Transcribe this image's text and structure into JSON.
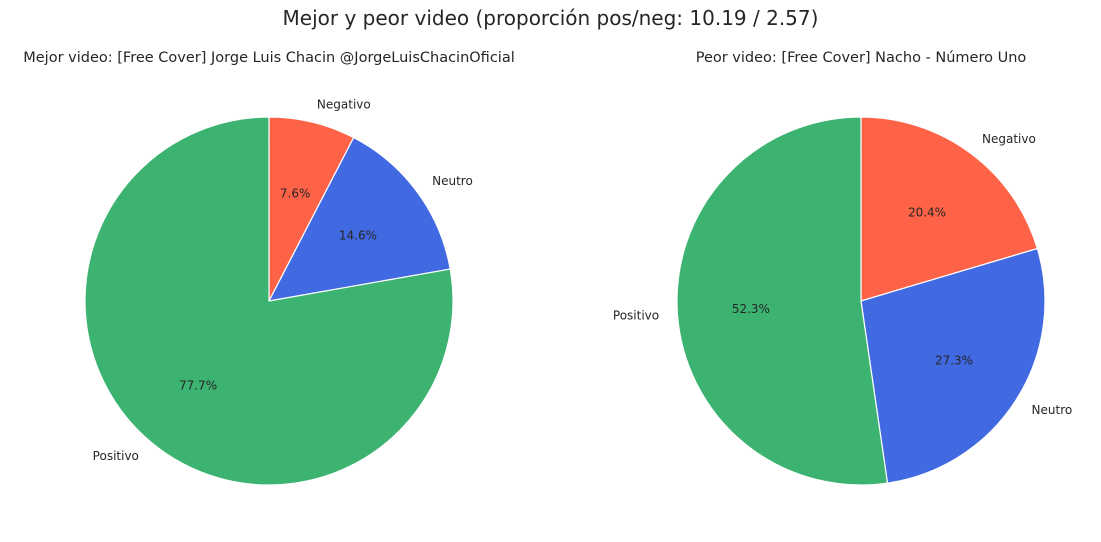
{
  "title": "Mejor y peor video (proporción pos/neg: 10.19 / 2.57)",
  "colors": {
    "Positivo": "#3cb371",
    "Neutro": "#4169e1",
    "Negativo": "#ff6347"
  },
  "chart_data": [
    {
      "type": "pie",
      "title": "Mejor video: [Free Cover] Jorge Luis Chacin @JorgeLuisChacinOficial",
      "categories": [
        "Negativo",
        "Neutro",
        "Positivo"
      ],
      "values": [
        7.6,
        14.6,
        77.7
      ],
      "value_labels": [
        "7.6%",
        "14.6%",
        "77.7%"
      ],
      "start_angle": 90,
      "direction": "clockwise"
    },
    {
      "type": "pie",
      "title": "Peor video: [Free Cover] Nacho  - Número Uno",
      "categories": [
        "Negativo",
        "Neutro",
        "Positivo"
      ],
      "values": [
        20.4,
        27.3,
        52.3
      ],
      "value_labels": [
        "20.4%",
        "27.3%",
        "52.3%"
      ],
      "start_angle": 90,
      "direction": "clockwise"
    }
  ]
}
